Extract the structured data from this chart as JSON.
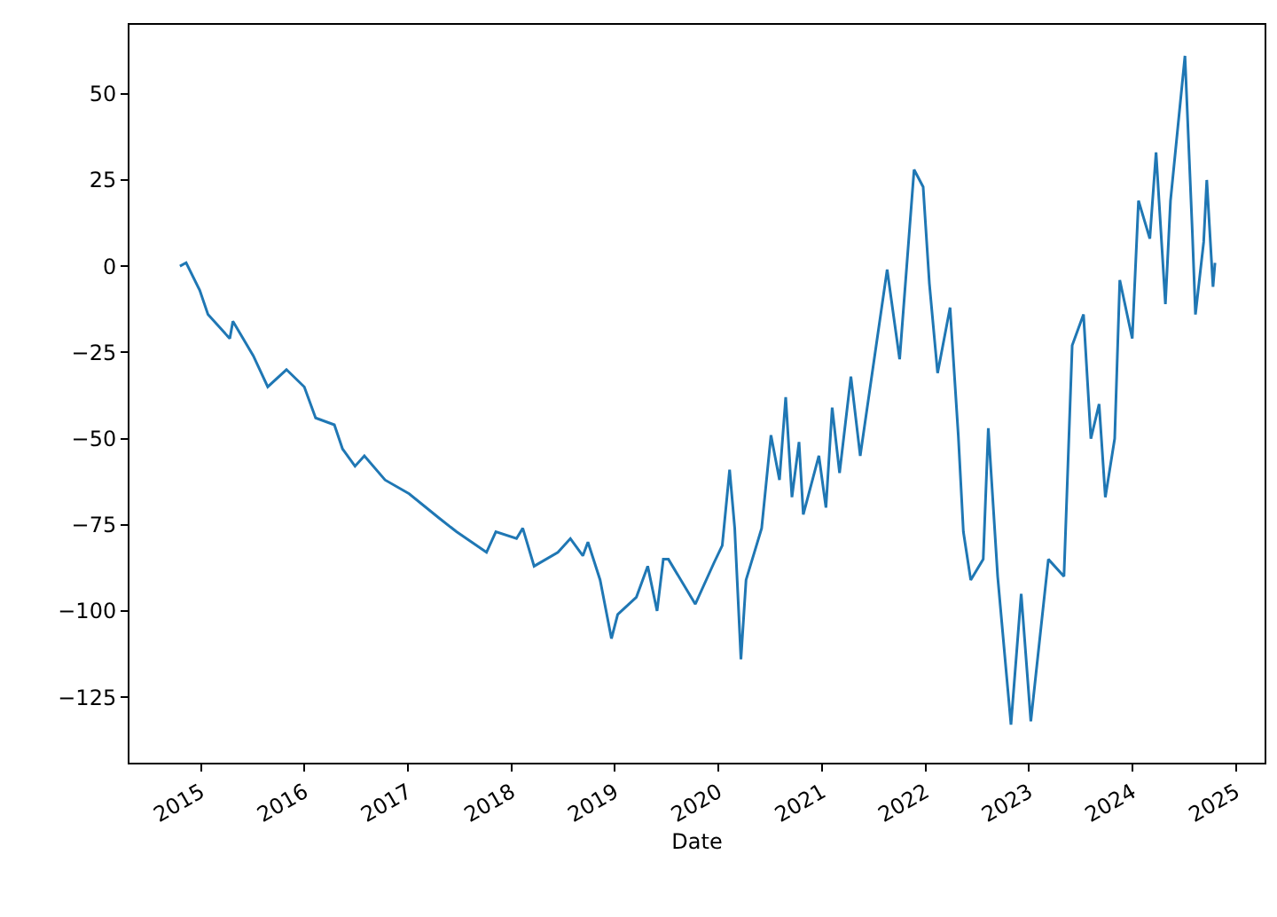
{
  "chart_data": {
    "type": "line",
    "xlabel": "Date",
    "xlim": [
      "2014-04-24",
      "2025-04-12"
    ],
    "xticks": [
      "2015",
      "2016",
      "2017",
      "2018",
      "2019",
      "2020",
      "2021",
      "2022",
      "2023",
      "2024",
      "2025"
    ],
    "ylim": [
      -144,
      70
    ],
    "yticks": [
      -125,
      -100,
      -75,
      -50,
      -25,
      0,
      25,
      50
    ],
    "marker": "none",
    "line_style": "solid",
    "series": [
      {
        "color": "#1f77b4",
        "x": [
          "2014-10-19",
          "2014-11-10",
          "2014-12-28",
          "2015-01-26",
          "2015-04-13",
          "2015-04-24",
          "2015-07-05",
          "2015-08-25",
          "2015-10-30",
          "2016-01-01",
          "2016-02-10",
          "2016-04-16",
          "2016-05-15",
          "2016-06-28",
          "2016-07-31",
          "2016-10-12",
          "2017-01-05",
          "2017-04-20",
          "2017-06-21",
          "2017-10-05",
          "2017-11-07",
          "2018-01-19",
          "2018-02-10",
          "2018-03-22",
          "2018-06-14",
          "2018-07-28",
          "2018-09-10",
          "2018-09-28",
          "2018-11-10",
          "2018-12-20",
          "2019-01-11",
          "2019-03-18",
          "2019-04-27",
          "2019-05-30",
          "2019-06-21",
          "2019-07-09",
          "2019-10-12",
          "2019-12-17",
          "2020-01-15",
          "2020-02-10",
          "2020-02-28",
          "2020-03-21",
          "2020-04-08",
          "2020-06-02",
          "2020-07-05",
          "2020-08-04",
          "2020-08-26",
          "2020-09-17",
          "2020-10-12",
          "2020-10-27",
          "2020-12-21",
          "2021-01-15",
          "2021-02-06",
          "2021-03-04",
          "2021-04-13",
          "2021-05-16",
          "2021-08-19",
          "2021-10-02",
          "2021-11-22",
          "2021-12-24",
          "2022-01-15",
          "2022-02-13",
          "2022-03-29",
          "2022-04-27",
          "2022-05-15",
          "2022-06-10",
          "2022-07-24",
          "2022-08-11",
          "2022-09-13",
          "2022-10-30",
          "2022-12-05",
          "2023-01-08",
          "2023-03-11",
          "2023-05-05",
          "2023-06-03",
          "2023-07-13",
          "2023-08-08",
          "2023-09-06",
          "2023-09-28",
          "2023-10-31",
          "2023-11-18",
          "2024-01-01",
          "2024-01-23",
          "2024-03-03",
          "2024-03-25",
          "2024-04-27",
          "2024-05-15",
          "2024-07-05",
          "2024-07-31",
          "2024-08-11",
          "2024-09-09",
          "2024-09-20",
          "2024-10-12",
          "2024-10-19"
        ],
        "values": [
          0,
          1,
          -7,
          -14,
          -21,
          -16,
          -26,
          -35,
          -30,
          -35,
          -44,
          -46,
          -53,
          -58,
          -55,
          -62,
          -66,
          -73,
          -77,
          -83,
          -77,
          -79,
          -76,
          -87,
          -83,
          -79,
          -84,
          -80,
          -91,
          -108,
          -101,
          -96,
          -87,
          -100,
          -85,
          -85,
          -98,
          -86,
          -81,
          -59,
          -76,
          -114,
          -91,
          -76,
          -49,
          -62,
          -38,
          -67,
          -51,
          -72,
          -55,
          -70,
          -41,
          -60,
          -32,
          -55,
          -1,
          -27,
          28,
          23,
          -5,
          -31,
          -12,
          -49,
          -77,
          -91,
          -85,
          -47,
          -90,
          -133,
          -95,
          -132,
          -85,
          -90,
          -23,
          -14,
          -50,
          -40,
          -67,
          -50,
          -4,
          -21,
          19,
          8,
          33,
          -11,
          19,
          61,
          10,
          -14,
          7,
          25,
          -6,
          1
        ]
      }
    ]
  }
}
